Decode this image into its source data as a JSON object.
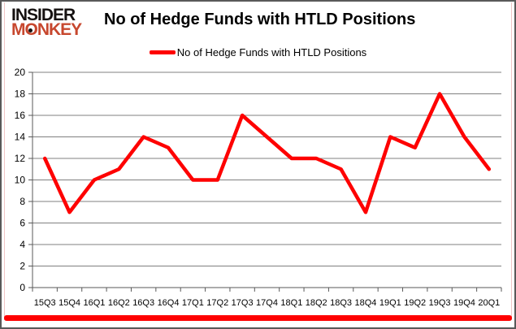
{
  "logo": {
    "line1": "INSIDER",
    "line2": "MONKEY"
  },
  "title": "No of Hedge Funds with HTLD Positions",
  "legend": {
    "label": "No of Hedge Funds with HTLD Positions"
  },
  "colors": {
    "series_red": "#fe0000",
    "logo_red": "#c7472e",
    "gridline": "#808080",
    "axis": "#595959",
    "frame_border": "#595959",
    "frame_accent": "#f0c6c6"
  },
  "chart_data": {
    "type": "line",
    "categories": [
      "15Q3",
      "15Q4",
      "16Q1",
      "16Q2",
      "16Q3",
      "16Q4",
      "17Q1",
      "17Q2",
      "17Q3",
      "17Q4",
      "18Q1",
      "18Q2",
      "18Q3",
      "18Q4",
      "19Q1",
      "19Q2",
      "19Q3",
      "19Q4",
      "20Q1"
    ],
    "series": [
      {
        "name": "No of Hedge Funds with HTLD Positions",
        "values": [
          12,
          7,
          10,
          11,
          14,
          13,
          10,
          10,
          16,
          14,
          12,
          12,
          11,
          7,
          14,
          13,
          18,
          14,
          11
        ],
        "color": "#fe0000"
      }
    ],
    "title": "No of Hedge Funds with HTLD Positions",
    "xlabel": "",
    "ylabel": "",
    "ylim": [
      0,
      20
    ],
    "ytick_step": 2,
    "grid": true,
    "legend_position": "top-center"
  }
}
